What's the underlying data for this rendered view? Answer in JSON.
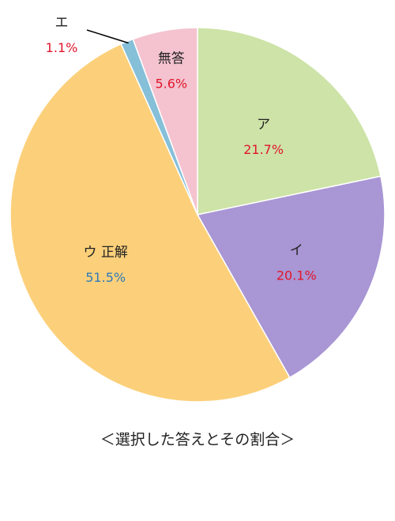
{
  "chart_data": {
    "type": "pie",
    "title": "＜選択した答えとその割合＞",
    "start_angle_deg": 0,
    "direction": "clockwise",
    "slices": [
      {
        "label": "ア",
        "value": 21.7,
        "value_text": "21.7%",
        "color": "#cde3a7",
        "value_color": "#e0162b"
      },
      {
        "label": "イ",
        "value": 20.1,
        "value_text": "20.1%",
        "color": "#a996d4",
        "value_color": "#e0162b"
      },
      {
        "label": "ウ 正解",
        "value": 51.5,
        "value_text": "51.5%",
        "color": "#fcd07a",
        "value_color": "#2f7ab8"
      },
      {
        "label": "エ",
        "value": 1.1,
        "value_text": "1.1%",
        "color": "#86bfd8",
        "value_color": "#e0162b"
      },
      {
        "label": "無答",
        "value": 5.6,
        "value_text": "5.6%",
        "color": "#f4c3cf",
        "value_color": "#e0162b"
      }
    ]
  }
}
